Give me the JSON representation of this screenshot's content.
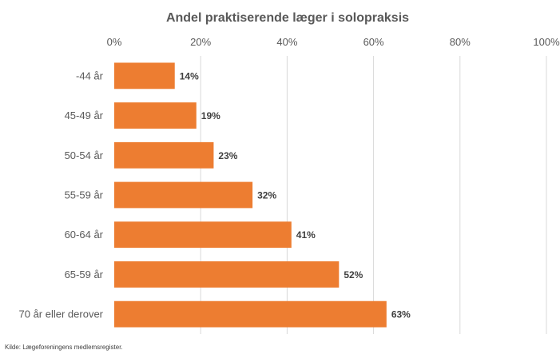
{
  "chart_data": {
    "type": "bar",
    "orientation": "horizontal",
    "title": "Andel praktiserende læger i solopraksis",
    "categories": [
      "-44 år",
      "45-49 år",
      "50-54 år",
      "55-59 år",
      "60-64 år",
      "65-59 år",
      "70 år eller derover"
    ],
    "values": [
      14,
      19,
      23,
      32,
      41,
      52,
      63
    ],
    "data_labels": [
      "14%",
      "19%",
      "23%",
      "32%",
      "41%",
      "52%",
      "63%"
    ],
    "x_ticks": [
      "0%",
      "20%",
      "40%",
      "60%",
      "80%",
      "100%"
    ],
    "xlim": [
      0,
      100
    ],
    "xlabel": "",
    "ylabel": "",
    "grid": true,
    "axis_position": "top",
    "bar_color": "#ed7d31"
  },
  "source": "Kilde: Lægeforeningens medlemsregister."
}
